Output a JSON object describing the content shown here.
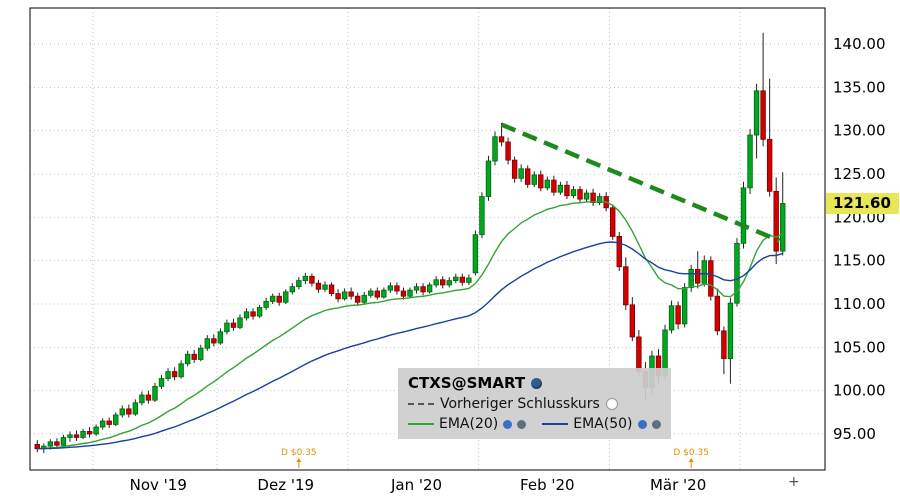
{
  "chart_data": {
    "type": "candlestick",
    "symbol": "CTXS@SMART",
    "last_price": "121.60",
    "y_axis": {
      "min": 95,
      "max": 140,
      "step": 5,
      "tick_labels": [
        "95.00",
        "100.00",
        "105.00",
        "110.00",
        "115.00",
        "120.00",
        "125.00",
        "130.00",
        "135.00",
        "140.00"
      ]
    },
    "x_axis": {
      "labels": [
        {
          "label": "Nov '19",
          "day": 18.5
        },
        {
          "label": "Dez '19",
          "day": 38
        },
        {
          "label": "Jan '20",
          "day": 58
        },
        {
          "label": "Feb '20",
          "day": 78
        },
        {
          "label": "Mär '20",
          "day": 98
        }
      ],
      "month_boundary_days": [
        9,
        28,
        48,
        68,
        88,
        108
      ]
    },
    "candles_ohlc": [
      [
        93.8,
        94.3,
        92.9,
        93.3
      ],
      [
        93.3,
        93.9,
        92.8,
        93.6
      ],
      [
        93.6,
        94.4,
        93.2,
        94.1
      ],
      [
        94.1,
        94.5,
        93.3,
        93.7
      ],
      [
        93.7,
        94.9,
        93.5,
        94.6
      ],
      [
        94.6,
        95.3,
        94.1,
        94.9
      ],
      [
        94.9,
        95.4,
        94.2,
        94.6
      ],
      [
        94.6,
        95.6,
        94.4,
        95.3
      ],
      [
        95.3,
        95.8,
        94.6,
        95.0
      ],
      [
        95.0,
        96.1,
        94.8,
        95.8
      ],
      [
        95.8,
        96.8,
        95.5,
        96.5
      ],
      [
        96.5,
        96.9,
        95.7,
        96.1
      ],
      [
        96.1,
        97.5,
        95.9,
        97.2
      ],
      [
        97.2,
        98.3,
        96.9,
        97.9
      ],
      [
        97.9,
        98.4,
        96.9,
        97.3
      ],
      [
        97.3,
        99.0,
        97.1,
        98.6
      ],
      [
        98.6,
        99.9,
        98.3,
        99.5
      ],
      [
        99.5,
        100.0,
        98.5,
        98.9
      ],
      [
        98.9,
        100.9,
        98.7,
        100.5
      ],
      [
        100.5,
        101.8,
        100.2,
        101.4
      ],
      [
        101.4,
        102.6,
        101.1,
        102.2
      ],
      [
        102.2,
        102.7,
        101.2,
        101.6
      ],
      [
        101.6,
        103.5,
        101.4,
        103.1
      ],
      [
        103.1,
        104.6,
        102.8,
        104.2
      ],
      [
        104.2,
        104.7,
        103.2,
        103.6
      ],
      [
        103.6,
        105.3,
        103.4,
        104.9
      ],
      [
        104.9,
        106.4,
        104.6,
        106.0
      ],
      [
        106.0,
        106.5,
        105.1,
        105.5
      ],
      [
        105.5,
        107.2,
        105.3,
        106.8
      ],
      [
        106.8,
        108.2,
        106.5,
        107.8
      ],
      [
        107.8,
        108.3,
        106.9,
        107.3
      ],
      [
        107.3,
        108.8,
        107.1,
        108.4
      ],
      [
        108.4,
        109.5,
        108.1,
        109.1
      ],
      [
        109.1,
        109.5,
        108.2,
        108.6
      ],
      [
        108.6,
        109.9,
        108.4,
        109.6
      ],
      [
        109.6,
        110.7,
        109.3,
        110.3
      ],
      [
        110.3,
        111.2,
        110.0,
        110.9
      ],
      [
        110.9,
        111.3,
        109.8,
        110.2
      ],
      [
        110.2,
        111.7,
        110.0,
        111.4
      ],
      [
        111.4,
        112.4,
        111.1,
        112.0
      ],
      [
        112.0,
        113.1,
        111.7,
        112.7
      ],
      [
        112.7,
        113.6,
        112.3,
        113.2
      ],
      [
        113.2,
        113.5,
        112.0,
        112.4
      ],
      [
        112.4,
        112.8,
        111.3,
        111.7
      ],
      [
        111.7,
        112.6,
        111.4,
        112.2
      ],
      [
        112.2,
        112.5,
        110.9,
        111.2
      ],
      [
        111.2,
        111.7,
        110.2,
        110.6
      ],
      [
        110.6,
        111.8,
        110.4,
        111.4
      ],
      [
        111.4,
        111.9,
        110.5,
        110.9
      ],
      [
        110.9,
        111.3,
        109.8,
        110.2
      ],
      [
        110.2,
        111.4,
        110.0,
        111.0
      ],
      [
        111.0,
        111.8,
        110.7,
        111.5
      ],
      [
        111.5,
        111.9,
        110.5,
        110.8
      ],
      [
        110.8,
        111.9,
        110.6,
        111.6
      ],
      [
        111.6,
        112.5,
        111.3,
        112.1
      ],
      [
        112.1,
        112.5,
        111.1,
        111.5
      ],
      [
        111.5,
        111.9,
        110.5,
        110.9
      ],
      [
        110.9,
        111.9,
        110.7,
        111.6
      ],
      [
        111.6,
        112.4,
        111.2,
        112.0
      ],
      [
        112.0,
        112.4,
        111.0,
        111.4
      ],
      [
        111.4,
        112.5,
        111.2,
        112.2
      ],
      [
        112.2,
        113.2,
        111.9,
        112.8
      ],
      [
        112.8,
        113.2,
        111.8,
        112.2
      ],
      [
        112.2,
        113.1,
        111.9,
        112.7
      ],
      [
        112.7,
        113.5,
        112.4,
        113.1
      ],
      [
        113.1,
        113.5,
        112.1,
        112.5
      ],
      [
        112.5,
        113.4,
        112.2,
        113.0
      ],
      [
        113.6,
        118.5,
        113.3,
        118.0
      ],
      [
        118.0,
        122.9,
        117.6,
        122.4
      ],
      [
        122.4,
        127.1,
        121.9,
        126.5
      ],
      [
        126.5,
        129.9,
        126.0,
        129.3
      ],
      [
        129.3,
        130.9,
        128.2,
        128.7
      ],
      [
        128.7,
        129.2,
        126.1,
        126.6
      ],
      [
        126.6,
        127.0,
        124.0,
        124.5
      ],
      [
        124.5,
        126.1,
        124.1,
        125.6
      ],
      [
        125.6,
        126.0,
        123.4,
        123.8
      ],
      [
        123.8,
        125.3,
        123.5,
        124.9
      ],
      [
        124.9,
        125.4,
        123.0,
        123.4
      ],
      [
        123.4,
        124.7,
        123.1,
        124.3
      ],
      [
        124.3,
        124.8,
        122.5,
        122.9
      ],
      [
        122.9,
        124.1,
        122.6,
        123.7
      ],
      [
        123.7,
        124.2,
        122.1,
        122.5
      ],
      [
        122.5,
        123.6,
        122.2,
        123.2
      ],
      [
        123.2,
        123.6,
        121.7,
        122.1
      ],
      [
        122.1,
        123.2,
        121.8,
        122.8
      ],
      [
        122.8,
        123.3,
        121.3,
        121.7
      ],
      [
        121.7,
        122.8,
        121.4,
        122.4
      ],
      [
        122.4,
        122.9,
        120.7,
        121.1
      ],
      [
        121.1,
        121.5,
        117.4,
        117.8
      ],
      [
        117.8,
        118.3,
        113.8,
        114.3
      ],
      [
        114.3,
        115.4,
        109.3,
        109.9
      ],
      [
        109.9,
        110.8,
        105.7,
        106.2
      ],
      [
        106.2,
        107.0,
        101.6,
        102.2
      ],
      [
        102.2,
        103.3,
        98.9,
        100.4
      ],
      [
        100.4,
        104.6,
        99.4,
        104.0
      ],
      [
        104.0,
        104.8,
        100.7,
        101.7
      ],
      [
        101.7,
        107.6,
        101.3,
        107.0
      ],
      [
        107.0,
        110.4,
        106.6,
        109.8
      ],
      [
        109.8,
        110.3,
        107.1,
        107.7
      ],
      [
        107.7,
        112.4,
        107.3,
        111.9
      ],
      [
        111.9,
        114.5,
        111.4,
        114.0
      ],
      [
        114.0,
        116.1,
        111.8,
        112.4
      ],
      [
        112.4,
        115.6,
        112.0,
        115.0
      ],
      [
        115.0,
        115.5,
        110.4,
        110.9
      ],
      [
        110.9,
        111.8,
        106.4,
        106.9
      ],
      [
        106.9,
        107.4,
        101.9,
        103.7
      ],
      [
        103.7,
        110.7,
        100.8,
        110.1
      ],
      [
        110.1,
        117.6,
        109.7,
        117.0
      ],
      [
        117.0,
        124.1,
        116.4,
        123.4
      ],
      [
        123.4,
        130.2,
        122.7,
        129.5
      ],
      [
        129.5,
        135.4,
        126.8,
        134.6
      ],
      [
        134.6,
        141.3,
        128.2,
        129.0
      ],
      [
        129.0,
        136.0,
        122.4,
        123.0
      ],
      [
        123.0,
        124.6,
        114.6,
        116.1
      ],
      [
        116.1,
        125.2,
        115.6,
        121.6
      ]
    ],
    "indicators": [
      {
        "name": "EMA(20)",
        "period": 20,
        "color": "#33a333"
      },
      {
        "name": "EMA(50)",
        "period": 50,
        "color": "#1b3f9e"
      }
    ],
    "trendline": {
      "from_day": 71,
      "from_price": 130.7,
      "to_day": 113.5,
      "to_price": 117.3,
      "color": "#1e8a1e",
      "style": "dashed"
    },
    "dividends": [
      {
        "day": 40,
        "label": "D $0.35"
      },
      {
        "day": 100,
        "label": "D $0.35"
      }
    ],
    "colors": {
      "up": "#00a81e",
      "up_border": "#006414",
      "down": "#d40000",
      "down_border": "#7a0000",
      "wick": "#222222",
      "grid": "#c3c3c3",
      "badge_bg": "#e9e657",
      "dividend": "#e09100",
      "trend": "#1e8a1e"
    },
    "expand_icon": "+"
  },
  "legend": {
    "title": "CTXS@SMART",
    "prev_close_label": "Vorheriger Schlusskurs",
    "ema20_label": "EMA(20)",
    "ema50_label": "EMA(50)"
  },
  "axis_badge": {
    "value": "121.60"
  }
}
